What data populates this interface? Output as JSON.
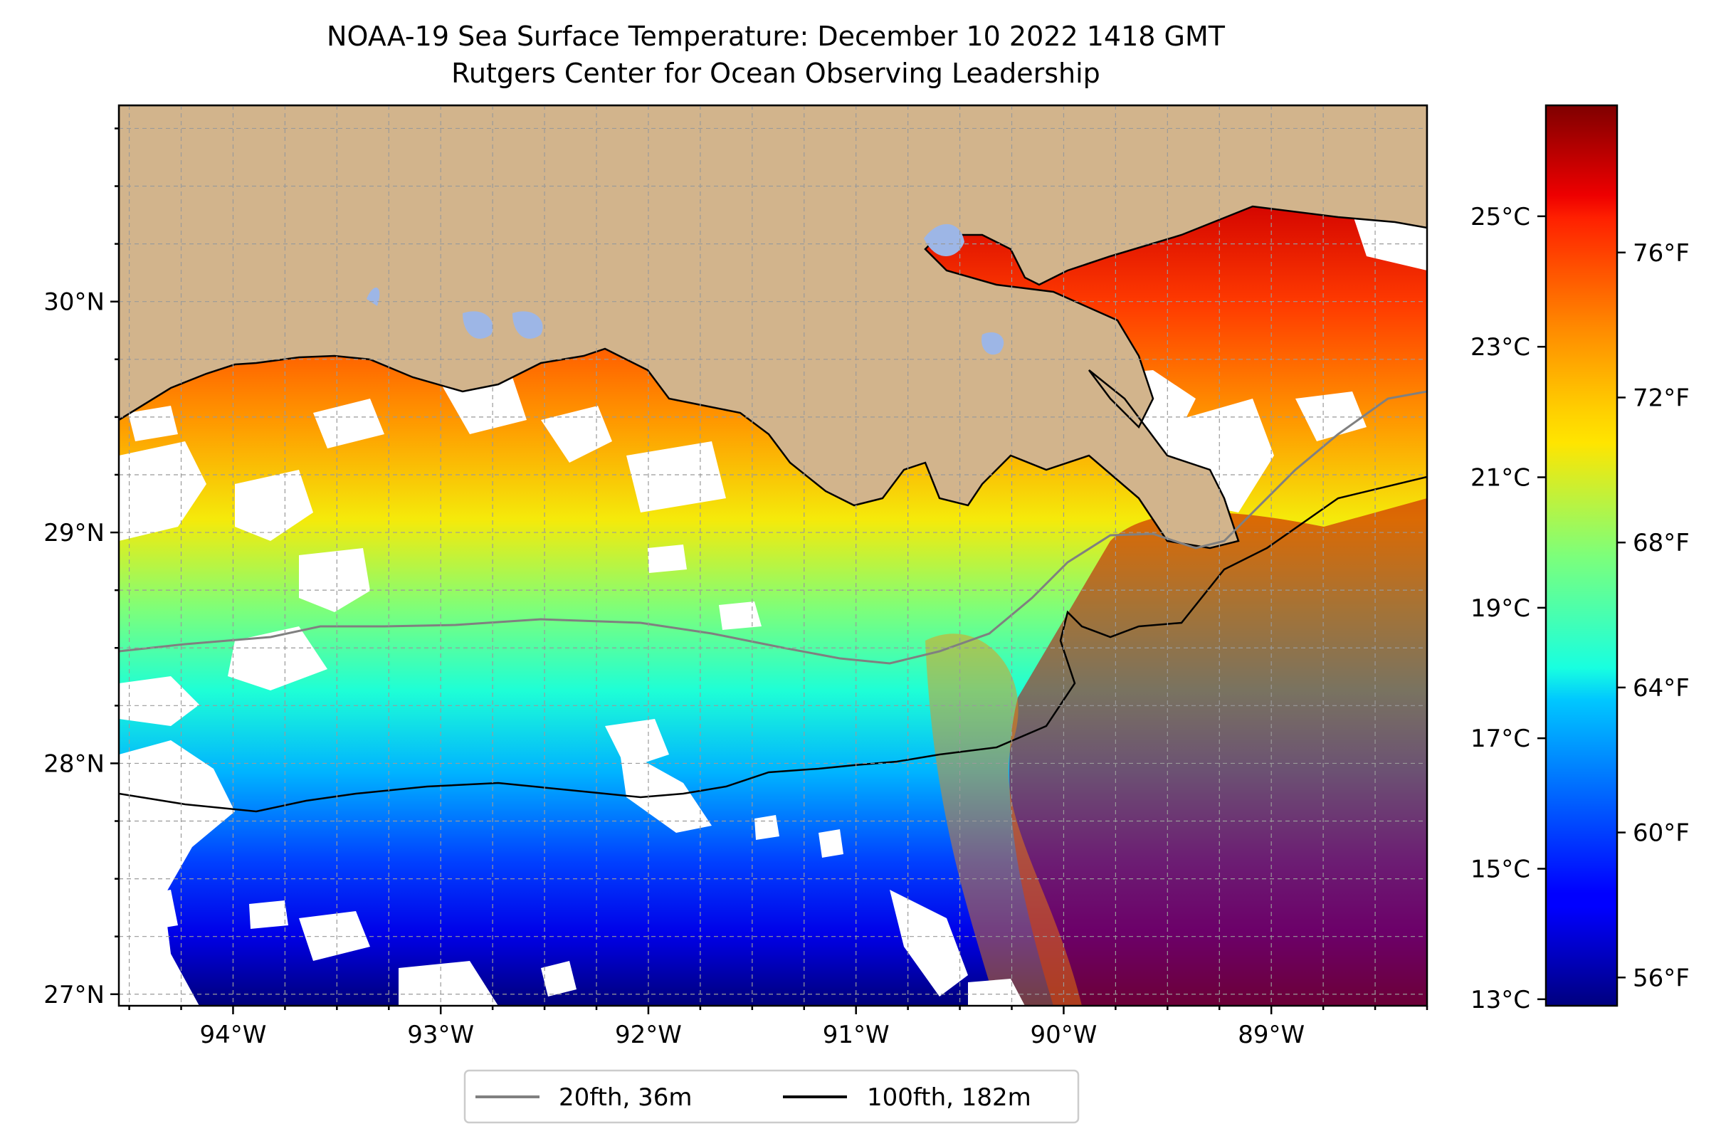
{
  "title": {
    "line1": "NOAA-19 Sea Surface Temperature: December 10 2022 1418 GMT",
    "line2": "Rutgers Center for Ocean Observing Leadership"
  },
  "map": {
    "lon_range": [
      -94.55,
      -88.25
    ],
    "lat_range": [
      26.95,
      30.85
    ],
    "lon_ticks": [
      {
        "value": -94,
        "label": "94°W"
      },
      {
        "value": -93,
        "label": "93°W"
      },
      {
        "value": -92,
        "label": "92°W"
      },
      {
        "value": -91,
        "label": "91°W"
      },
      {
        "value": -90,
        "label": "90°W"
      },
      {
        "value": -89,
        "label": "89°W"
      }
    ],
    "lat_ticks": [
      {
        "value": 30,
        "label": "30°N"
      },
      {
        "value": 29,
        "label": "29°N"
      },
      {
        "value": 28,
        "label": "28°N"
      },
      {
        "value": 27,
        "label": "27°N"
      }
    ],
    "colors": {
      "land": "#d2b48c",
      "no_data": "#ffffff",
      "inland_water": "#9db6e6",
      "grid": "#9a9a9a"
    }
  },
  "legend": {
    "items": [
      {
        "label": "20fth, 36m",
        "color": "#808080"
      },
      {
        "label": "100fth, 182m",
        "color": "#000000"
      }
    ]
  },
  "colorbar": {
    "colormap": "jet",
    "range_c": [
      12.9,
      26.7
    ],
    "celsius_ticks": [
      {
        "value": 13,
        "label": "13°C"
      },
      {
        "value": 15,
        "label": "15°C"
      },
      {
        "value": 17,
        "label": "17°C"
      },
      {
        "value": 19,
        "label": "19°C"
      },
      {
        "value": 21,
        "label": "21°C"
      },
      {
        "value": 23,
        "label": "23°C"
      },
      {
        "value": 25,
        "label": "25°C"
      }
    ],
    "fahrenheit_ticks": [
      {
        "value": 56,
        "label": "56°F"
      },
      {
        "value": 60,
        "label": "60°F"
      },
      {
        "value": 64,
        "label": "64°F"
      },
      {
        "value": 68,
        "label": "68°F"
      },
      {
        "value": 72,
        "label": "72°F"
      },
      {
        "value": 76,
        "label": "76°F"
      }
    ]
  }
}
